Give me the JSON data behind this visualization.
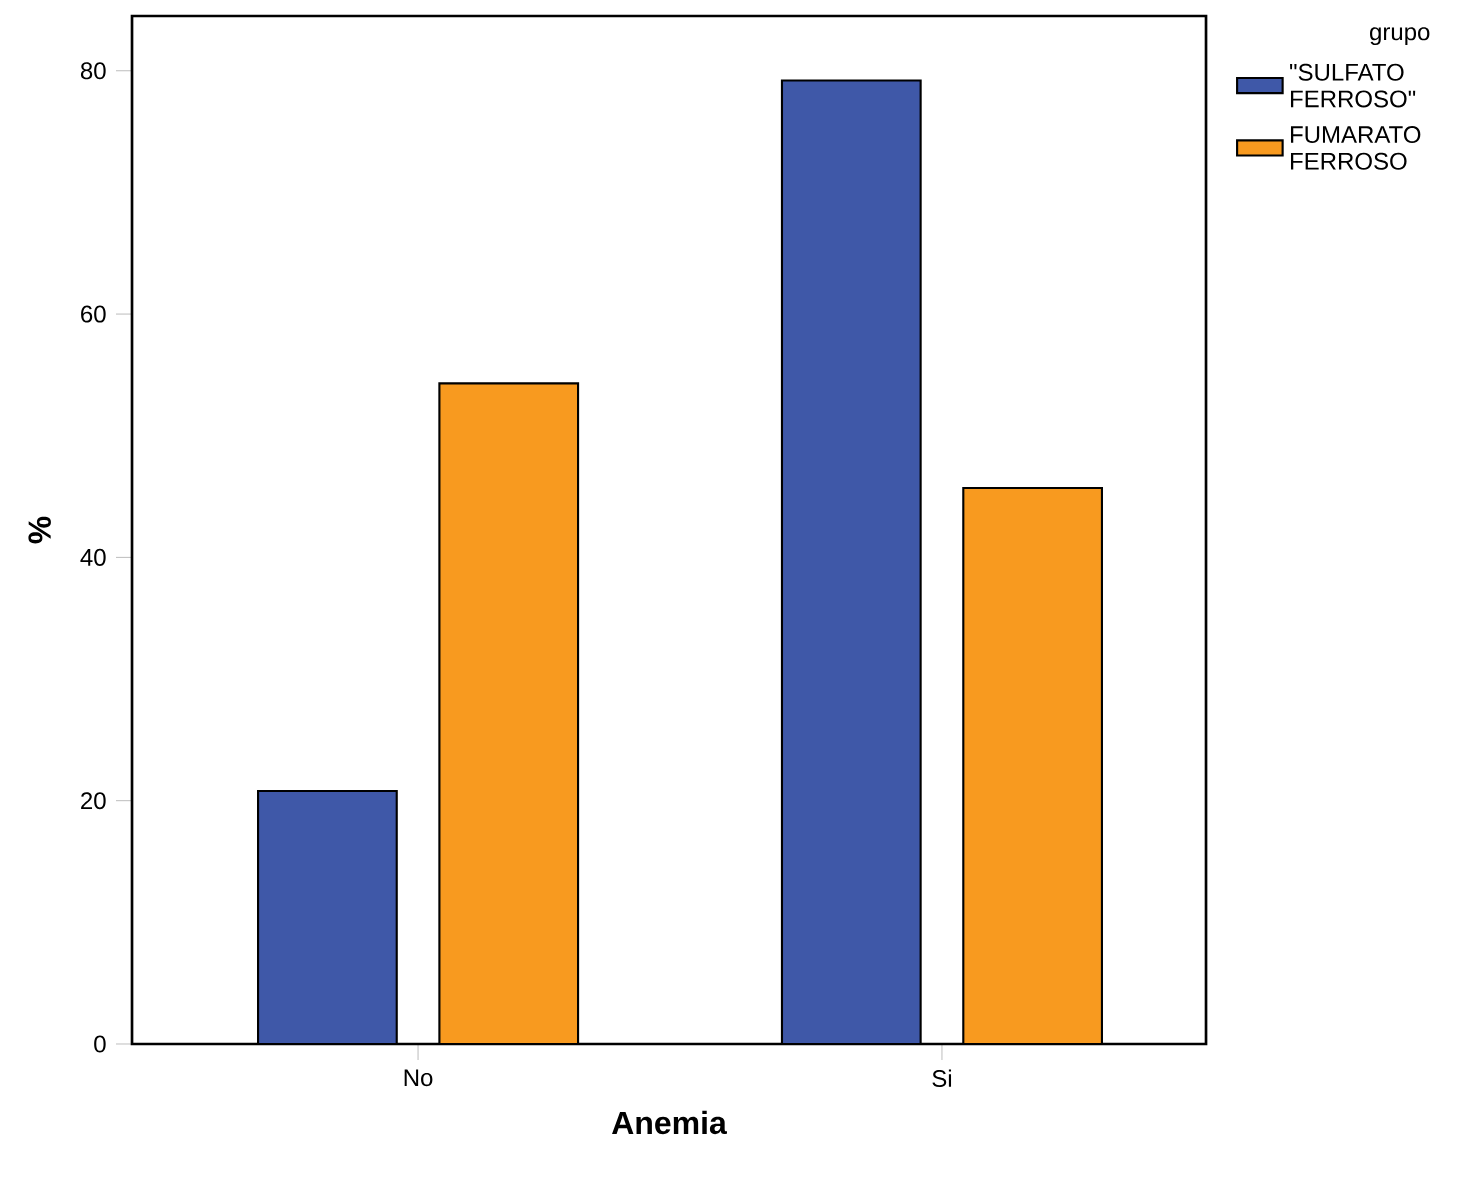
{
  "chart_data": {
    "type": "bar",
    "xlabel": "Anemia",
    "ylabel": "%",
    "legend_title": "grupo",
    "categories": [
      "No",
      "Si"
    ],
    "series": [
      {
        "name": "\"SULFATO FERROSO\"",
        "color": "#3f58a8",
        "values": [
          20.8,
          79.2
        ]
      },
      {
        "name": "FUMARATO FERROSO",
        "color": "#f89a1f",
        "values": [
          54.3,
          45.7
        ]
      }
    ],
    "ylim": [
      0,
      84.5
    ],
    "yticks": [
      0,
      20,
      40,
      60,
      80
    ],
    "grid": false,
    "legend": "top right"
  }
}
